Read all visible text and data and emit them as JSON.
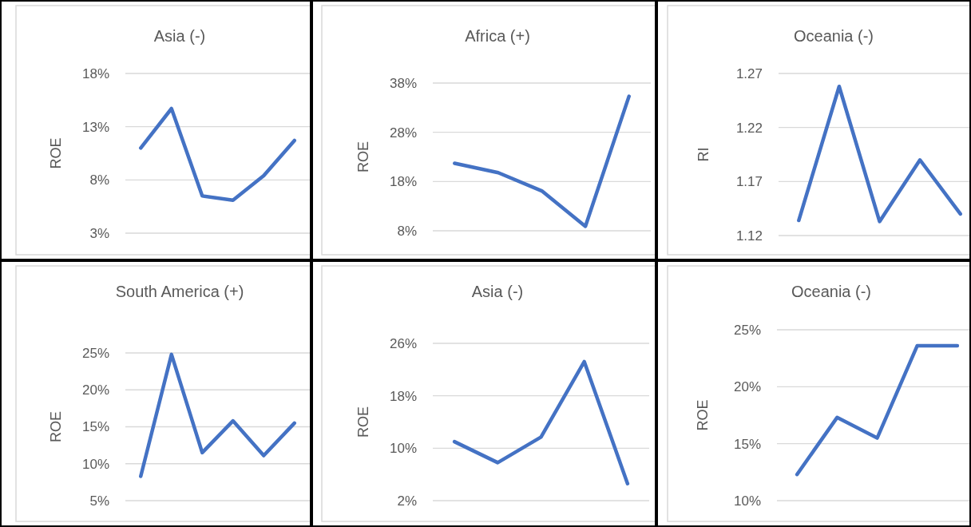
{
  "chart_data": [
    {
      "type": "line",
      "title": "Asia (-)",
      "ylabel": "ROE",
      "categories": [
        null,
        null,
        null,
        null,
        null,
        null
      ],
      "series": [
        {
          "color": "#4472c4",
          "values": [
            11.0,
            14.7,
            6.5,
            6.1,
            8.4,
            11.7
          ]
        }
      ],
      "ylim": [
        3,
        18
      ],
      "yticks": [
        {
          "value": 3,
          "label": "3%"
        },
        {
          "value": 8,
          "label": "8%"
        },
        {
          "value": 13,
          "label": "13%"
        },
        {
          "value": 18,
          "label": "18%"
        }
      ],
      "grid": "y"
    },
    {
      "type": "line",
      "title": "Africa (+)",
      "ylabel": "ROE",
      "categories": [
        null,
        null,
        null,
        null,
        null
      ],
      "series": [
        {
          "color": "#4472c4",
          "values": [
            21.7,
            19.8,
            16.1,
            8.9,
            35.3
          ]
        }
      ],
      "ylim": [
        8,
        38
      ],
      "yticks": [
        {
          "value": 8,
          "label": "8%"
        },
        {
          "value": 18,
          "label": "18%"
        },
        {
          "value": 28,
          "label": "28%"
        },
        {
          "value": 38,
          "label": "38%"
        }
      ],
      "grid": "y"
    },
    {
      "type": "line",
      "title": "Oceania (-)",
      "ylabel": "RI",
      "categories": [
        null,
        null,
        null,
        null,
        null
      ],
      "series": [
        {
          "color": "#4472c4",
          "values": [
            1.134,
            1.258,
            1.133,
            1.19,
            1.14
          ]
        }
      ],
      "ylim": [
        1.12,
        1.27
      ],
      "yticks": [
        1.12,
        1.17,
        1.22,
        1.27
      ],
      "grid": "y"
    },
    {
      "type": "line",
      "title": "South America (+)",
      "ylabel": "ROE",
      "categories": [
        null,
        null,
        null,
        null,
        null,
        null
      ],
      "series": [
        {
          "color": "#4472c4",
          "values": [
            8.3,
            24.8,
            11.5,
            15.8,
            11.1,
            15.5
          ]
        }
      ],
      "ylim": [
        5,
        25
      ],
      "yticks": [
        {
          "value": 5,
          "label": "5%"
        },
        {
          "value": 10,
          "label": "10%"
        },
        {
          "value": 15,
          "label": "15%"
        },
        {
          "value": 20,
          "label": "20%"
        },
        {
          "value": 25,
          "label": "25%"
        }
      ],
      "grid": "y"
    },
    {
      "type": "line",
      "title": "Asia (-)",
      "ylabel": "ROE",
      "categories": [
        null,
        null,
        null,
        null,
        null
      ],
      "series": [
        {
          "color": "#4472c4",
          "values": [
            11.0,
            7.8,
            11.7,
            23.2,
            4.6
          ]
        }
      ],
      "ylim": [
        2,
        26
      ],
      "yticks": [
        {
          "value": 2,
          "label": "2%"
        },
        {
          "value": 10,
          "label": "10%"
        },
        {
          "value": 18,
          "label": "18%"
        },
        {
          "value": 26,
          "label": "26%"
        }
      ],
      "grid": "y"
    },
    {
      "type": "line",
      "title": "Oceania (-)",
      "ylabel": "ROE",
      "categories": [
        null,
        null,
        null,
        null,
        null
      ],
      "series": [
        {
          "color": "#4472c4",
          "values": [
            12.3,
            17.3,
            15.5,
            23.6,
            23.6
          ]
        }
      ],
      "ylim": [
        10,
        25
      ],
      "yticks": [
        {
          "value": 10,
          "label": "10%"
        },
        {
          "value": 15,
          "label": "15%"
        },
        {
          "value": 20,
          "label": "20%"
        },
        {
          "value": 25,
          "label": "25%"
        }
      ],
      "grid": "y"
    }
  ]
}
